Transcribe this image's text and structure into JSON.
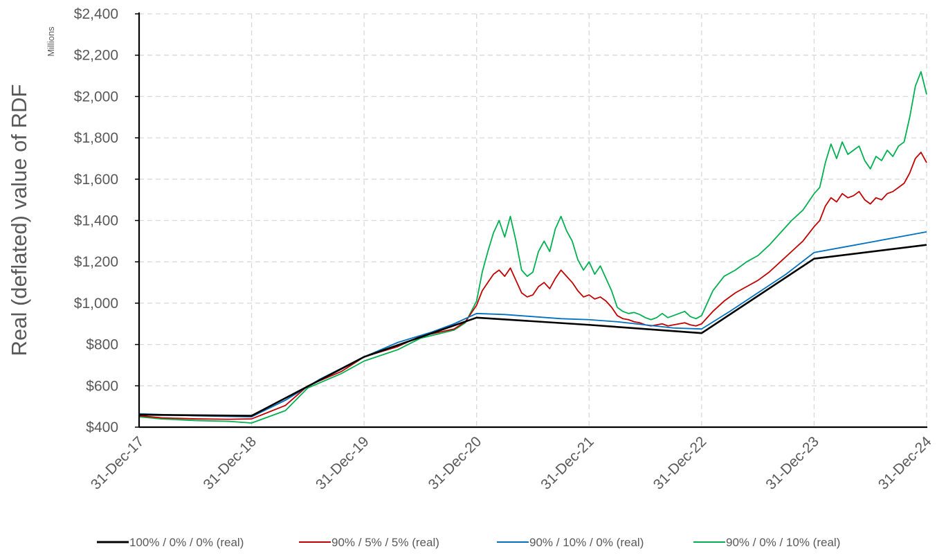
{
  "chart_data": {
    "type": "line",
    "title": "",
    "ylabel": "Real (deflated) value of RDF",
    "y_units_label": "Millions",
    "xlabel": "",
    "ylim": [
      400,
      2400
    ],
    "y_ticks": [
      400,
      600,
      800,
      1000,
      1200,
      1400,
      1600,
      1800,
      2000,
      2200,
      2400
    ],
    "y_tick_labels": [
      "$400",
      "$600",
      "$800",
      "$1,000",
      "$1,200",
      "$1,400",
      "$1,600",
      "$1,800",
      "$2,000",
      "$2,200",
      "$2,400"
    ],
    "x_tick_labels": [
      "31-Dec-17",
      "31-Dec-18",
      "31-Dec-19",
      "31-Dec-20",
      "31-Dec-21",
      "31-Dec-22",
      "31-Dec-23",
      "31-Dec-24"
    ],
    "x_unit": "year",
    "xlim": [
      2017.0,
      2024.0
    ],
    "grid": true,
    "legend_position": "bottom",
    "series": [
      {
        "name": "100% / 0% / 0% (real)",
        "color": "#000000",
        "x": [
          2017.0,
          2018.0,
          2019.0,
          2020.0,
          2021.0,
          2022.0,
          2023.0,
          2024.0
        ],
        "y": [
          460,
          455,
          740,
          930,
          895,
          855,
          1215,
          1282
        ]
      },
      {
        "name": "90% / 5% / 5% (real)",
        "color": "#C00000",
        "x": [
          2017.0,
          2017.2,
          2017.5,
          2017.8,
          2018.0,
          2018.3,
          2018.5,
          2018.8,
          2019.0,
          2019.3,
          2019.5,
          2019.8,
          2019.9,
          2020.0,
          2020.05,
          2020.1,
          2020.15,
          2020.2,
          2020.25,
          2020.3,
          2020.35,
          2020.4,
          2020.45,
          2020.5,
          2020.55,
          2020.6,
          2020.65,
          2020.7,
          2020.75,
          2020.8,
          2020.85,
          2020.9,
          2020.95,
          2021.0,
          2021.05,
          2021.1,
          2021.15,
          2021.2,
          2021.25,
          2021.3,
          2021.35,
          2021.4,
          2021.45,
          2021.5,
          2021.55,
          2021.6,
          2021.65,
          2021.7,
          2021.75,
          2021.8,
          2021.85,
          2021.9,
          2021.95,
          2022.0,
          2022.1,
          2022.2,
          2022.3,
          2022.4,
          2022.5,
          2022.6,
          2022.7,
          2022.8,
          2022.9,
          2023.0,
          2023.05,
          2023.1,
          2023.15,
          2023.2,
          2023.25,
          2023.3,
          2023.35,
          2023.4,
          2023.45,
          2023.5,
          2023.55,
          2023.6,
          2023.65,
          2023.7,
          2023.75,
          2023.8,
          2023.85,
          2023.9,
          2023.95,
          2024.0
        ],
        "y": [
          455,
          445,
          440,
          438,
          440,
          505,
          600,
          670,
          740,
          790,
          840,
          875,
          910,
          990,
          1060,
          1100,
          1140,
          1160,
          1130,
          1170,
          1110,
          1050,
          1030,
          1040,
          1080,
          1100,
          1070,
          1120,
          1160,
          1130,
          1100,
          1060,
          1030,
          1040,
          1020,
          1030,
          1010,
          980,
          940,
          925,
          920,
          910,
          905,
          895,
          890,
          895,
          900,
          890,
          895,
          900,
          905,
          895,
          890,
          900,
          960,
          1010,
          1050,
          1080,
          1110,
          1150,
          1200,
          1250,
          1300,
          1370,
          1400,
          1470,
          1510,
          1490,
          1530,
          1510,
          1520,
          1540,
          1500,
          1480,
          1510,
          1500,
          1530,
          1540,
          1560,
          1580,
          1630,
          1700,
          1730,
          1680
        ]
      },
      {
        "name": "90% / 10% / 0% (real)",
        "color": "#0070C0",
        "x": [
          2017.0,
          2017.5,
          2018.0,
          2018.3,
          2018.6,
          2019.0,
          2019.3,
          2019.6,
          2019.8,
          2020.0,
          2020.25,
          2020.5,
          2020.75,
          2021.0,
          2021.25,
          2021.5,
          2021.75,
          2022.0,
          2022.25,
          2022.5,
          2022.75,
          2023.0,
          2023.25,
          2023.5,
          2023.75,
          2024.0
        ],
        "y": [
          465,
          455,
          450,
          530,
          630,
          740,
          810,
          860,
          900,
          950,
          945,
          935,
          925,
          920,
          910,
          895,
          880,
          875,
          960,
          1050,
          1140,
          1245,
          1270,
          1295,
          1320,
          1345
        ]
      },
      {
        "name": "90% / 0% / 10% (real)",
        "color": "#00B050",
        "x": [
          2017.0,
          2017.2,
          2017.5,
          2017.8,
          2018.0,
          2018.3,
          2018.5,
          2018.8,
          2019.0,
          2019.3,
          2019.5,
          2019.8,
          2019.9,
          2020.0,
          2020.05,
          2020.1,
          2020.15,
          2020.2,
          2020.25,
          2020.3,
          2020.35,
          2020.4,
          2020.45,
          2020.5,
          2020.55,
          2020.6,
          2020.65,
          2020.7,
          2020.75,
          2020.8,
          2020.85,
          2020.9,
          2020.95,
          2021.0,
          2021.05,
          2021.1,
          2021.15,
          2021.2,
          2021.25,
          2021.3,
          2021.35,
          2021.4,
          2021.45,
          2021.5,
          2021.55,
          2021.6,
          2021.65,
          2021.7,
          2021.75,
          2021.8,
          2021.85,
          2021.9,
          2021.95,
          2022.0,
          2022.1,
          2022.2,
          2022.3,
          2022.4,
          2022.5,
          2022.6,
          2022.7,
          2022.8,
          2022.9,
          2023.0,
          2023.05,
          2023.1,
          2023.15,
          2023.2,
          2023.25,
          2023.3,
          2023.35,
          2023.4,
          2023.45,
          2023.5,
          2023.55,
          2023.6,
          2023.65,
          2023.7,
          2023.75,
          2023.8,
          2023.85,
          2023.9,
          2023.95,
          2024.0
        ],
        "y": [
          450,
          440,
          432,
          428,
          420,
          480,
          590,
          660,
          720,
          775,
          830,
          870,
          905,
          1010,
          1150,
          1250,
          1340,
          1400,
          1320,
          1420,
          1300,
          1160,
          1130,
          1150,
          1250,
          1300,
          1250,
          1360,
          1420,
          1350,
          1300,
          1210,
          1160,
          1200,
          1140,
          1180,
          1120,
          1060,
          980,
          960,
          950,
          955,
          945,
          930,
          920,
          930,
          950,
          930,
          940,
          950,
          960,
          935,
          925,
          940,
          1060,
          1130,
          1160,
          1200,
          1230,
          1280,
          1340,
          1400,
          1450,
          1530,
          1560,
          1680,
          1770,
          1700,
          1780,
          1720,
          1740,
          1760,
          1690,
          1650,
          1710,
          1690,
          1740,
          1710,
          1760,
          1780,
          1900,
          2050,
          2120,
          2010
        ]
      }
    ]
  }
}
